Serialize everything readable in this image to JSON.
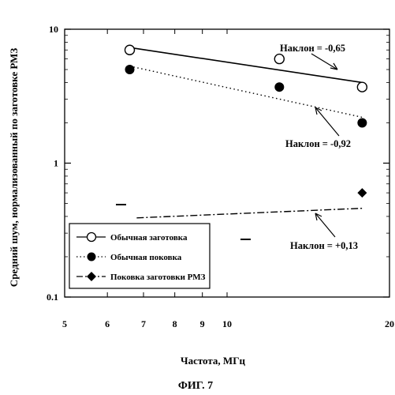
{
  "figure": {
    "caption": "ФИГ. 7"
  },
  "chart_data": {
    "type": "scatter",
    "x_scale": "log",
    "y_scale": "log",
    "xlim": [
      5,
      20
    ],
    "ylim": [
      0.1,
      10
    ],
    "xlabel": "Частота, МГц",
    "ylabel": "Средний шум, нормализованный по заготовке РМЗ",
    "x_ticks": [
      5,
      6,
      7,
      8,
      9,
      10,
      20
    ],
    "x_tick_labels": [
      "5",
      "6",
      "7",
      "8",
      "9",
      "10",
      "20"
    ],
    "y_ticks": [
      0.1,
      1,
      10
    ],
    "y_tick_labels": [
      "0.1",
      "1",
      "10"
    ],
    "grid": false,
    "legend_position": "bottom-left",
    "series": [
      {
        "name": "Обычная заготовка",
        "marker": "open-circle",
        "line_style": "solid",
        "x": [
          6.6,
          12.5,
          17.8
        ],
        "y": [
          7.0,
          6.0,
          3.7
        ],
        "fit": {
          "x": [
            6.6,
            17.8
          ],
          "y": [
            7.3,
            4.0
          ]
        }
      },
      {
        "name": "Обычная поковка",
        "marker": "filled-circle",
        "line_style": "dotted",
        "x": [
          6.6,
          12.5,
          17.8
        ],
        "y": [
          5.0,
          3.7,
          2.0
        ],
        "fit": {
          "x": [
            6.6,
            17.8
          ],
          "y": [
            5.3,
            2.2
          ]
        }
      },
      {
        "name": "Поковка заготовки РМЗ",
        "marker": "filled-diamond",
        "line_style": "dash-dot",
        "x": [
          17.8
        ],
        "y": [
          0.6
        ],
        "fit": {
          "x": [
            6.8,
            17.8
          ],
          "y": [
            0.39,
            0.46
          ]
        }
      }
    ],
    "annotations": [
      {
        "text": "Наклон = -0,65"
      },
      {
        "text": "Наклон = -0,92"
      },
      {
        "text": "Наклон = +0,13"
      }
    ]
  }
}
